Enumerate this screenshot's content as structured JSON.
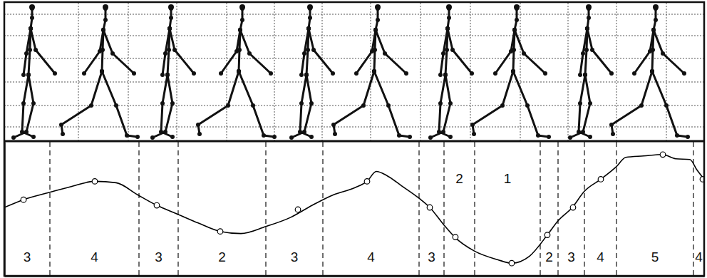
{
  "chart_data": {
    "type": "line",
    "xlim": [
      0,
      982
    ],
    "ylim": [
      0,
      190
    ],
    "tick_labels": false,
    "series": [
      {
        "type": "line",
        "color": "#000000",
        "line_style": "solid",
        "x": [
          0,
          27,
          62,
          92,
          127,
          157,
          187,
          214,
          242,
          272,
          303,
          332,
          367,
          402,
          432,
          462,
          492,
          509,
          522,
          537,
          557,
          582,
          597,
          617,
          632,
          660,
          692,
          712,
          737,
          762,
          777,
          797,
          814,
          837,
          859,
          872,
          897,
          924,
          942,
          962,
          972,
          982
        ],
        "values": [
          97,
          108,
          118,
          126,
          134,
          132,
          115,
          100,
          88,
          75,
          63,
          60,
          70,
          83,
          100,
          115,
          125,
          134,
          148,
          142,
          128,
          110,
          97,
          72,
          55,
          35,
          23,
          18,
          28,
          58,
          78,
          97,
          120,
          137,
          155,
          168,
          170,
          172,
          166,
          165,
          150,
          137
        ]
      },
      {
        "type": "scatter",
        "color": "#000000",
        "marker": "circle",
        "x": [
          27,
          127,
          214,
          303,
          412,
          509,
          597,
          633,
          712,
          762,
          798,
          837,
          924,
          980
        ],
        "values": [
          108,
          134,
          100,
          63,
          94,
          134,
          97,
          55,
          18,
          58,
          97,
          137,
          172,
          137
        ]
      }
    ],
    "segment_bounds": [
      64,
      189,
      244,
      367,
      447,
      582,
      617,
      660,
      752,
      777,
      814,
      859,
      967
    ],
    "segment_labels": [
      3,
      4,
      3,
      2,
      3,
      4,
      3,
      2,
      1,
      2,
      3,
      4,
      5,
      4
    ]
  }
}
